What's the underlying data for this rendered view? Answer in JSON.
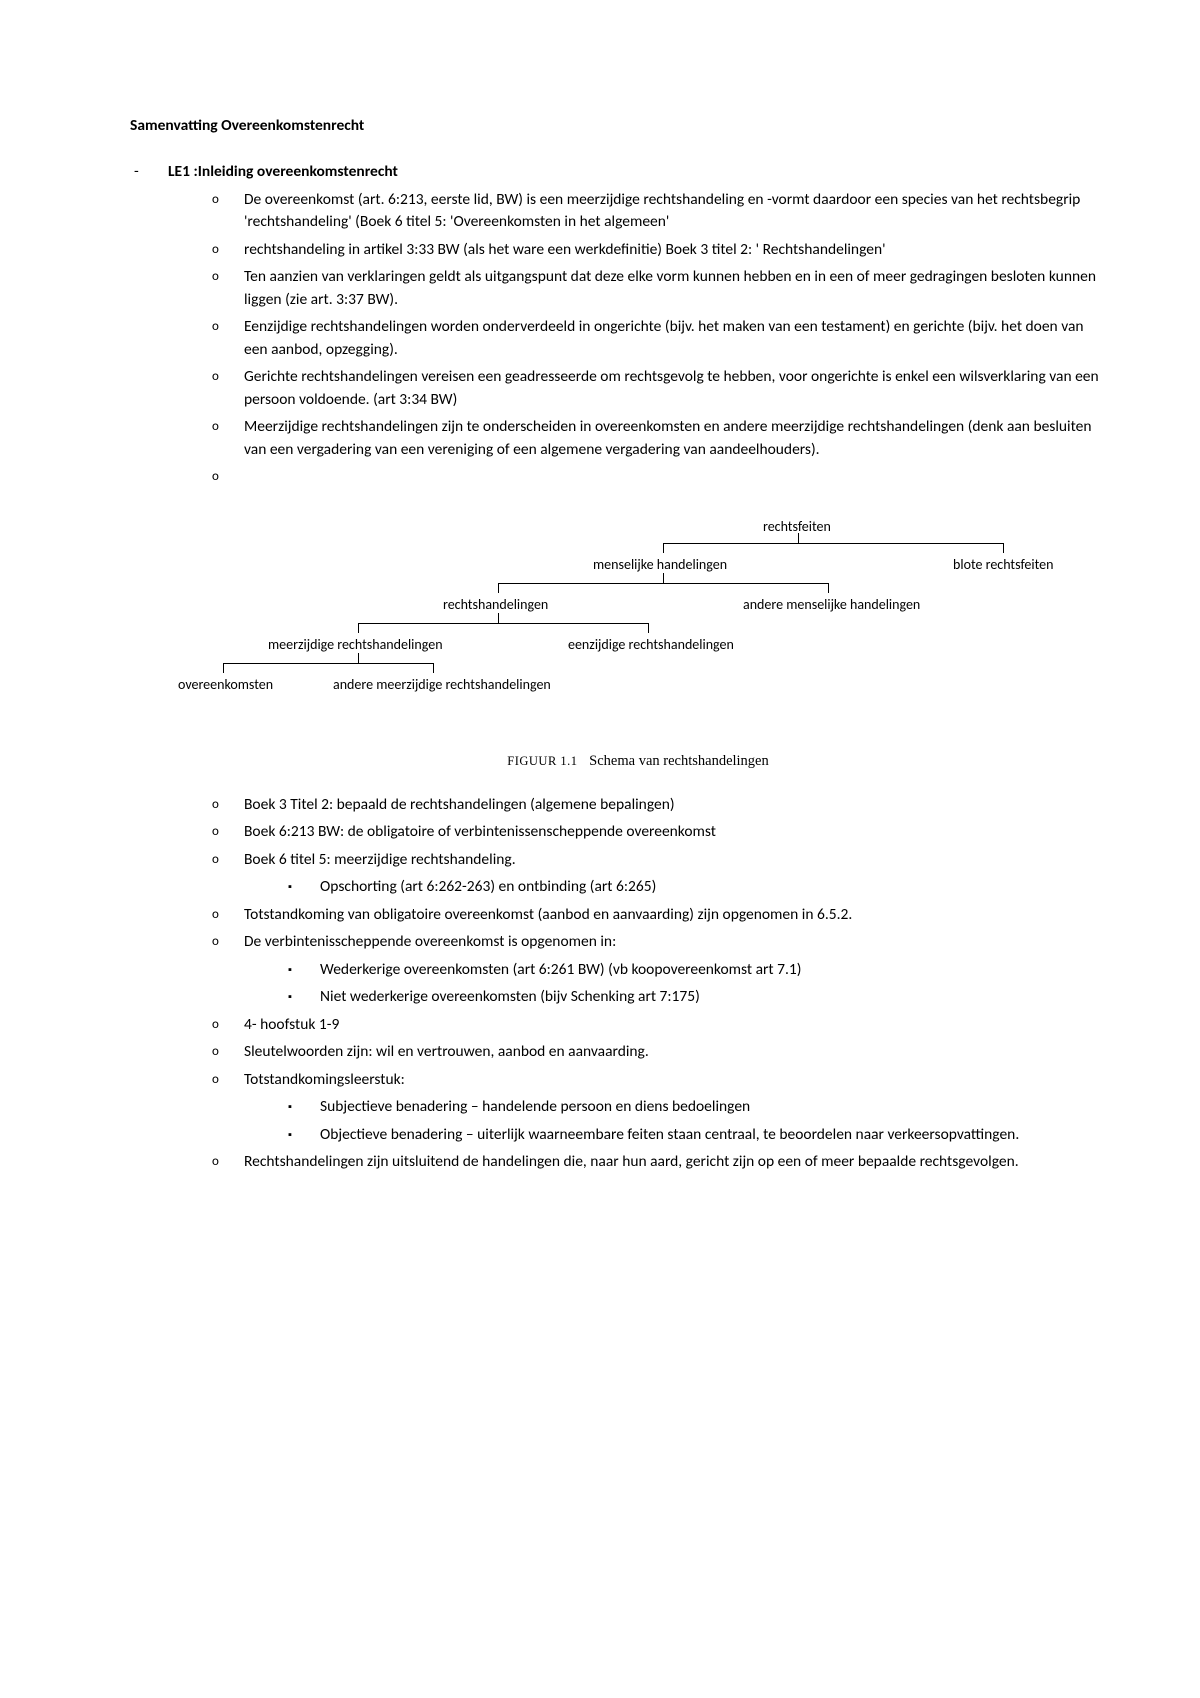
{
  "title": "Samenvatting Overeenkomstenrecht",
  "le1": {
    "heading": "LE1 :Inleiding overeenkomstenrecht",
    "itemsA": [
      "De overeenkomst (art. 6:213, eerste lid, BW) is een meerzijdige rechtshandeling en -vormt daardoor een species van het rechtsbegrip 'rechtshandeling' (Boek 6 titel 5: 'Overeenkomsten in het algemeen'",
      " rechtshandeling in artikel 3:33 BW (als het ware een werkdefinitie) Boek 3 titel 2: ' Rechtshandelingen'",
      "Ten aanzien van verklaringen geldt als uitgangspunt dat deze elke vorm kunnen hebben en in een of meer gedragingen besloten kunnen liggen (zie art. 3:37 BW).",
      "Eenzijdige rechtshandelingen worden onderverdeeld in ongerichte (bijv. het maken van een testament) en gerichte (bijv. het doen van een aanbod, opzegging).",
      "Gerichte rechtshandelingen vereisen een geadresseerde om rechtsgevolg te hebben, voor ongerichte is enkel een wilsverklaring van een persoon voldoende. (art 3:34 BW)",
      "Meerzijdige rechtshandelingen zijn te onderscheiden in overeenkomsten en andere meerzijdige rechtshandelingen (denk aan besluiten van een vergadering van een vereniging of een algemene vergadering van aandeelhouders)."
    ],
    "diagram": {
      "nodes": {
        "n1": "rechtsfeiten",
        "n2a": "menselijke handelingen",
        "n2b": "blote rechtsfeiten",
        "n3a": "rechtshandelingen",
        "n3b": "andere menselijke handelingen",
        "n4a": "meerzijdige rechtshandelingen",
        "n4b": "eenzijdige rechtshandelingen",
        "n5a": "overeenkomsten",
        "n5b": "andere meerzijdige rechtshandelingen"
      },
      "caption_label": "FIGUUR 1.1",
      "caption_text": "Schema van rechtshandelingen"
    },
    "itemsB": [
      {
        "text": "Boek 3 Titel 2: bepaald de rechtshandelingen (algemene bepalingen)"
      },
      {
        "text": "Boek 6:213 BW: de obligatoire of verbintenissenscheppende overeenkomst"
      },
      {
        "text": "Boek 6 titel 5: meerzijdige rechtshandeling.",
        "sub": [
          "Opschorting (art 6:262-263) en ontbinding (art 6:265)"
        ]
      },
      {
        "text": "Totstandkoming van obligatoire overeenkomst (aanbod en aanvaarding) zijn opgenomen in 6.5.2."
      },
      {
        "text": "De verbintenisscheppende overeenkomst is opgenomen in:",
        "sub": [
          "Wederkerige overeenkomsten (art 6:261 BW) (vb koopovereenkomst art 7.1)",
          "Niet wederkerige overeenkomsten (bijv Schenking art 7:175)"
        ]
      },
      {
        "text": "4- hoofstuk 1-9"
      },
      {
        "text": "Sleutelwoorden zijn: wil en vertrouwen, aanbod en aanvaarding."
      },
      {
        "text": "Totstandkomingsleerstuk:",
        "sub": [
          "Subjectieve benadering – handelende persoon en diens bedoelingen",
          "Objectieve benadering – uiterlijk waarneembare feiten staan centraal, te beoordelen naar verkeersopvattingen."
        ]
      },
      {
        "text": "Rechtshandelingen zijn uitsluitend de handelingen die, naar hun aard, gericht zijn op een of meer bepaalde rechtsgevolgen."
      }
    ]
  }
}
